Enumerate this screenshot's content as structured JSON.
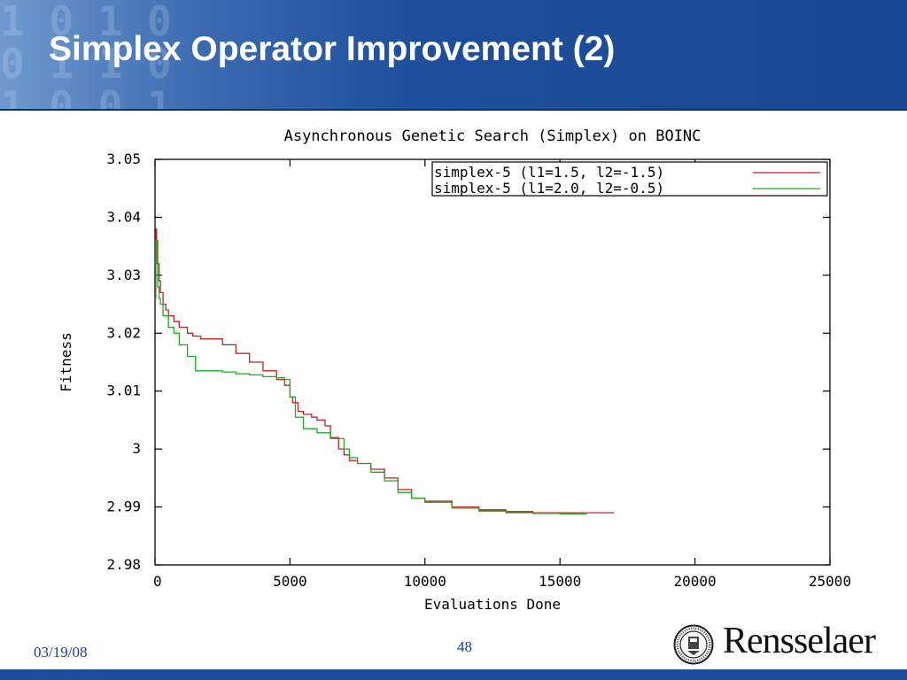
{
  "slide": {
    "title": "Simplex Operator Improvement (2)",
    "date": "03/19/08",
    "page_number": "48",
    "logo_text": "Rensselaer",
    "logo_seal_text": "RENSSELAER POLYTECHNIC INSTITUTE 1824",
    "header_binary": "1 0 1 0\n0 1 1 0\n1 0 0 1"
  },
  "colors": {
    "header_blue": "#1f4f9c",
    "series_red": "#c42222",
    "series_green": "#22aa22"
  },
  "chart_data": {
    "type": "line",
    "title": "Asynchronous Genetic Search (Simplex) on BOINC",
    "xlabel": "Evaluations Done",
    "ylabel": "Fitness",
    "xlim": [
      0,
      25000
    ],
    "ylim": [
      2.98,
      3.05
    ],
    "x_ticks": [
      "0",
      "5000",
      "10000",
      "15000",
      "20000",
      "25000"
    ],
    "y_ticks": [
      "2.98",
      "2.99",
      "3",
      "3.01",
      "3.02",
      "3.03",
      "3.04",
      "3.05"
    ],
    "grid": false,
    "legend_position": "top-right",
    "series": [
      {
        "name": "simplex-5 (l1=1.5, l2=-1.5)",
        "color": "#c42222",
        "x": [
          0,
          30,
          60,
          100,
          150,
          200,
          300,
          400,
          500,
          700,
          900,
          1000,
          1200,
          1400,
          1700,
          2000,
          2500,
          3000,
          3500,
          4000,
          4500,
          4800,
          5000,
          5100,
          5300,
          5500,
          5800,
          6000,
          6300,
          6500,
          6800,
          7000,
          7200,
          7500,
          8000,
          8500,
          9000,
          9500,
          10000,
          11000,
          12000,
          13000,
          14000,
          15000,
          16000,
          17000
        ],
        "y": [
          3.032,
          3.038,
          3.036,
          3.032,
          3.029,
          3.027,
          3.025,
          3.024,
          3.023,
          3.022,
          3.021,
          3.021,
          3.02,
          3.0195,
          3.019,
          3.019,
          3.018,
          3.0165,
          3.015,
          3.0135,
          3.012,
          3.011,
          3.009,
          3.008,
          3.0065,
          3.006,
          3.0055,
          3.005,
          3.004,
          3.002,
          3.0,
          2.999,
          2.998,
          2.9975,
          2.9965,
          2.995,
          2.993,
          2.9915,
          2.991,
          2.99,
          2.9895,
          2.9892,
          2.989,
          2.989,
          2.989,
          2.989
        ]
      },
      {
        "name": "simplex-5 (l1=2.0, l2=-0.5)",
        "color": "#22aa22",
        "x": [
          0,
          30,
          60,
          100,
          150,
          200,
          300,
          500,
          700,
          900,
          1200,
          1500,
          2000,
          2500,
          3000,
          3500,
          4000,
          4500,
          4800,
          5000,
          5200,
          5500,
          6000,
          6500,
          7000,
          7200,
          7500,
          8000,
          8500,
          9000,
          9500,
          10000,
          11000,
          12000,
          13000,
          14000,
          15000,
          16000
        ],
        "y": [
          3.026,
          3.036,
          3.032,
          3.028,
          3.026,
          3.025,
          3.023,
          3.021,
          3.02,
          3.018,
          3.016,
          3.0135,
          3.0135,
          3.0133,
          3.013,
          3.0128,
          3.0125,
          3.0123,
          3.012,
          3.009,
          3.0055,
          3.0035,
          3.0028,
          3.0018,
          3.0,
          2.9985,
          2.9975,
          2.996,
          2.9945,
          2.9925,
          2.9915,
          2.9908,
          2.9898,
          2.9893,
          2.989,
          2.9889,
          2.9888,
          2.9888
        ]
      }
    ]
  }
}
